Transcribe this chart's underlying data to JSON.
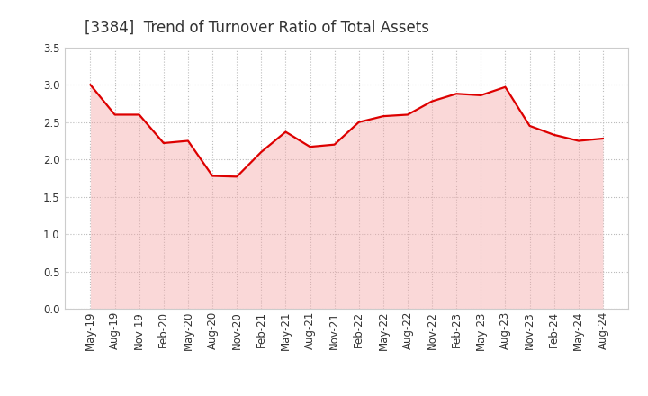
{
  "title": "[3384]  Trend of Turnover Ratio of Total Assets",
  "x_labels": [
    "May-19",
    "Aug-19",
    "Nov-19",
    "Feb-20",
    "May-20",
    "Aug-20",
    "Nov-20",
    "Feb-21",
    "May-21",
    "Aug-21",
    "Nov-21",
    "Feb-22",
    "May-22",
    "Aug-22",
    "Nov-22",
    "Feb-23",
    "May-23",
    "Aug-23",
    "Nov-23",
    "Feb-24",
    "May-24",
    "Aug-24"
  ],
  "values": [
    3.0,
    2.6,
    2.6,
    2.22,
    2.25,
    1.78,
    1.77,
    2.1,
    2.37,
    2.17,
    2.2,
    2.5,
    2.58,
    2.6,
    2.78,
    2.88,
    2.86,
    2.97,
    2.45,
    2.33,
    2.25,
    2.28
  ],
  "line_color": "#DD0000",
  "fill_color": "#F5AAAA",
  "ylim": [
    0.0,
    3.5
  ],
  "yticks": [
    0.0,
    0.5,
    1.0,
    1.5,
    2.0,
    2.5,
    3.0,
    3.5
  ],
  "background_color": "#FFFFFF",
  "grid_color": "#BBBBBB",
  "title_fontsize": 12,
  "tick_fontsize": 8.5,
  "line_width": 1.6,
  "title_color": "#333333"
}
